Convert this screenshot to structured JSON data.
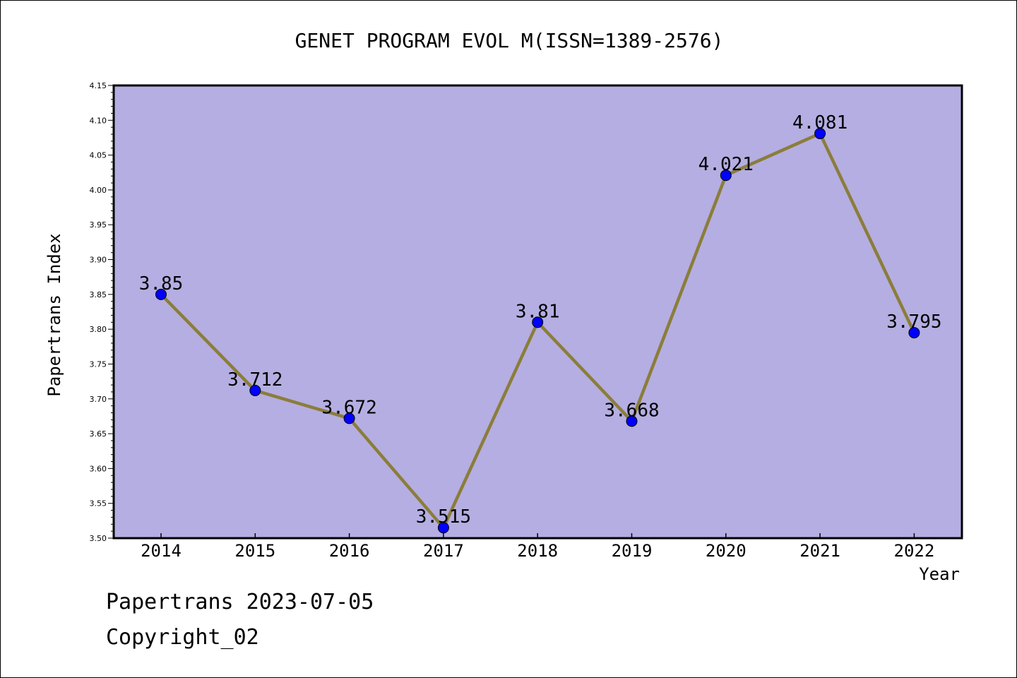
{
  "chart_data": {
    "type": "line",
    "title": "GENET PROGRAM EVOL M(ISSN=1389-2576)",
    "xlabel": "Year",
    "ylabel": "Papertrans Index",
    "categories": [
      "2014",
      "2015",
      "2016",
      "2017",
      "2018",
      "2019",
      "2020",
      "2021",
      "2022"
    ],
    "values": [
      3.85,
      3.712,
      3.672,
      3.515,
      3.81,
      3.668,
      4.021,
      4.081,
      3.795
    ],
    "data_labels": [
      "3.85",
      "3.712",
      "3.672",
      "3.515",
      "3.81",
      "3.668",
      "4.021",
      "4.081",
      "3.795"
    ],
    "ylim": [
      3.5,
      4.15
    ],
    "yticks": [
      "3.50",
      "3.55",
      "3.60",
      "3.65",
      "3.70",
      "3.75",
      "3.80",
      "3.85",
      "3.90",
      "3.95",
      "4.00",
      "4.05",
      "4.10",
      "4.15"
    ],
    "grid": false,
    "legend": "none",
    "colors": {
      "plot_background": "#b4aee2",
      "line": "#8b7d3a",
      "marker": "#0000ff"
    }
  },
  "footer": {
    "date_line": "Papertrans 2023-07-05",
    "copyright_line": "Copyright_02"
  }
}
